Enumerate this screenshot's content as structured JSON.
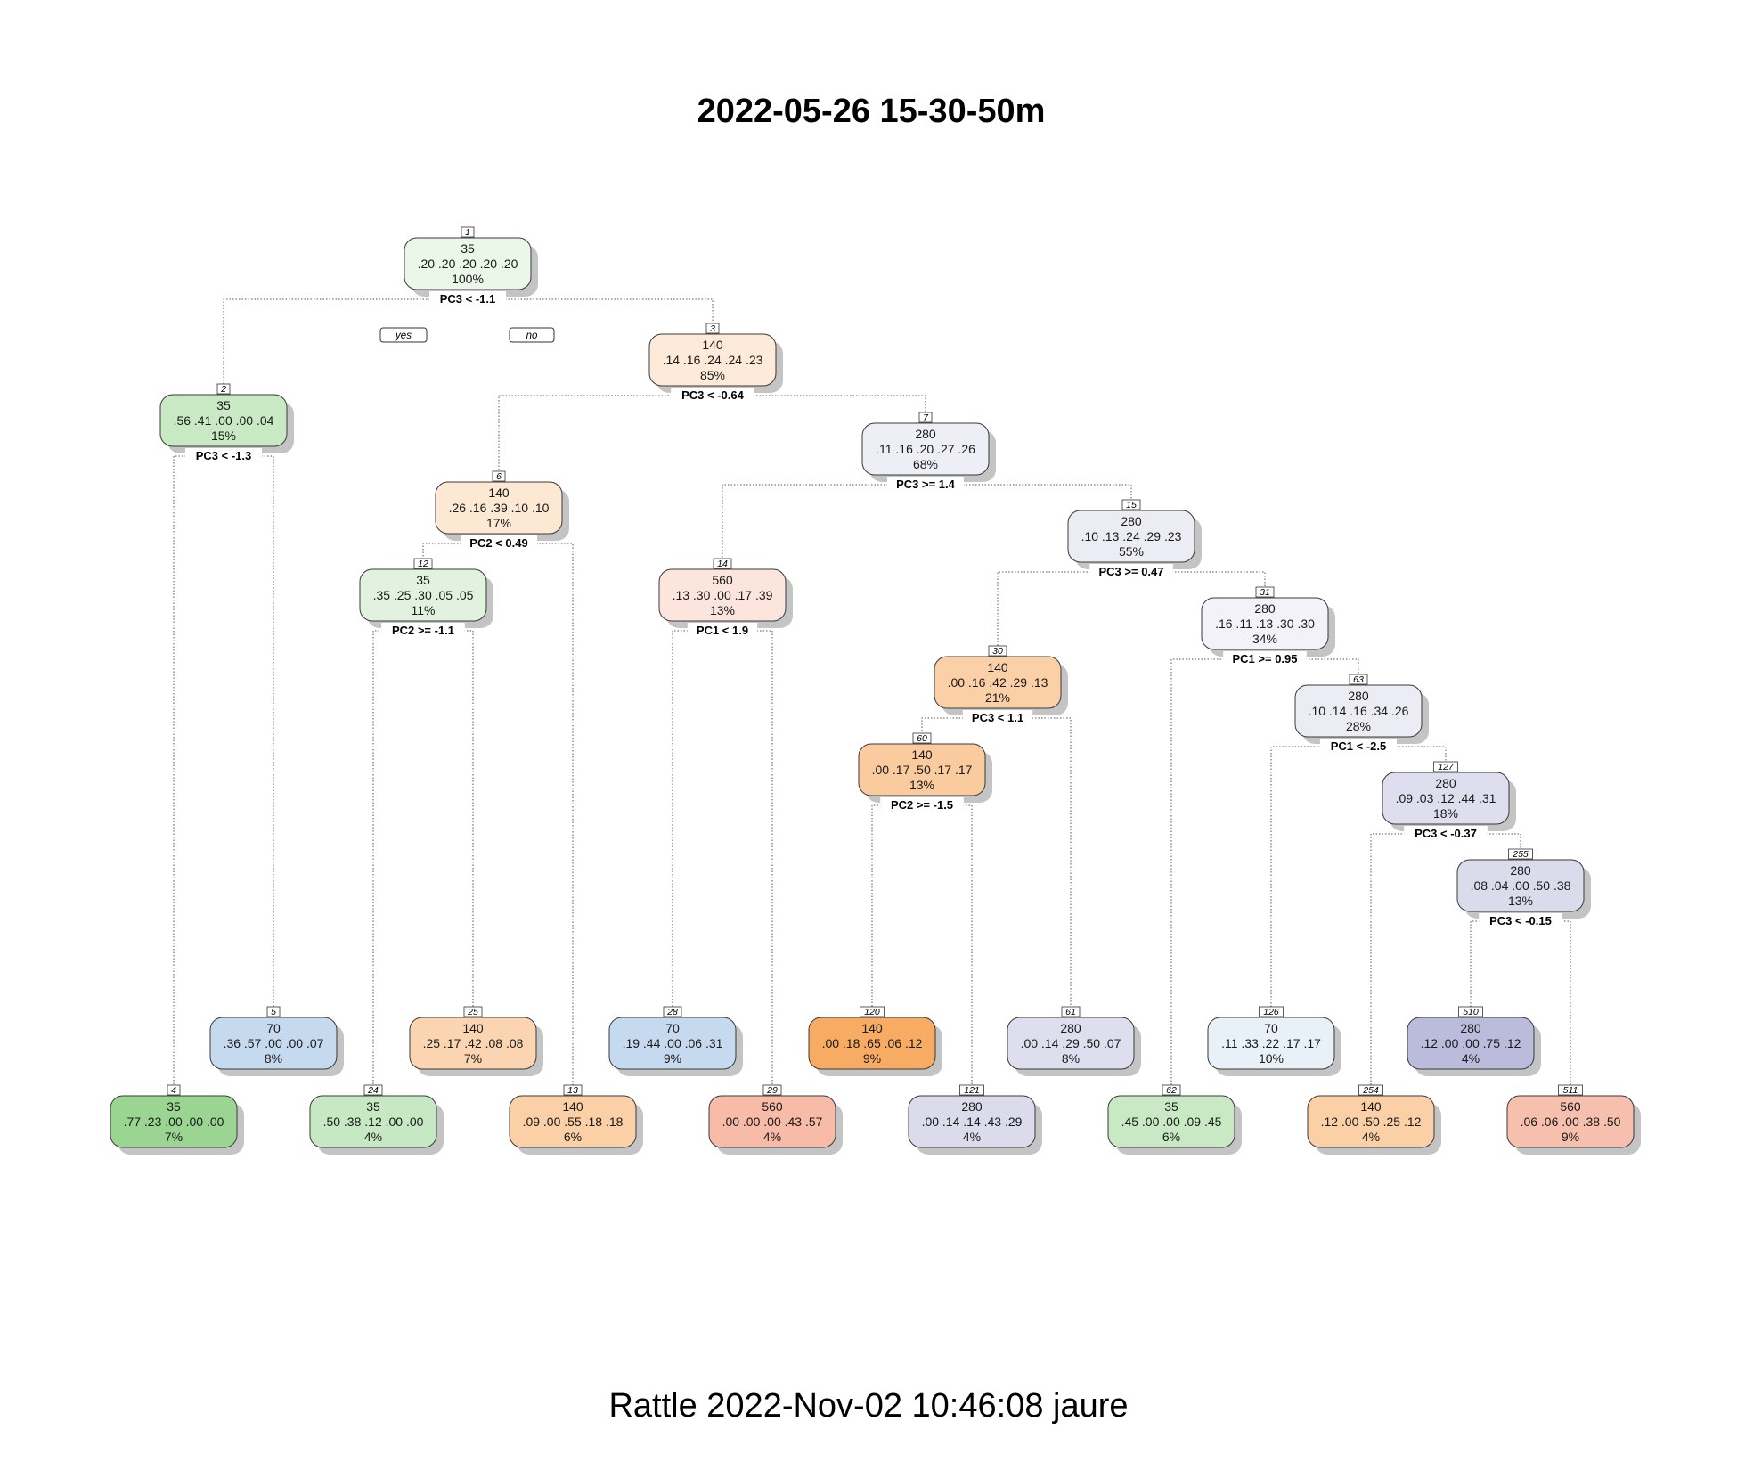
{
  "title": "2022-05-26 15-30-50m",
  "footer": "Rattle 2022-Nov-02 10:46:08 jaure",
  "branch_labels": {
    "yes": "yes",
    "no": "no"
  },
  "colors": {
    "green": [
      [
        255,
        255,
        255
      ],
      [
        120,
        200,
        110
      ]
    ],
    "blue": [
      [
        255,
        255,
        255
      ],
      [
        150,
        185,
        225
      ]
    ],
    "orange": [
      [
        255,
        255,
        255
      ],
      [
        245,
        150,
        60
      ]
    ],
    "salmon": [
      [
        255,
        255,
        255
      ],
      [
        242,
        150,
        120
      ]
    ],
    "purple": [
      [
        255,
        255,
        255
      ],
      [
        160,
        160,
        205
      ]
    ]
  },
  "nodes": [
    {
      "id": "1",
      "pred": "35",
      "probs": ".20 .20 .20 .20 .20",
      "pct": "100%",
      "split": "PC3 < -1.1",
      "palette": "green",
      "shade": 0.15
    },
    {
      "id": "2",
      "pred": "35",
      "probs": ".56 .41 .00 .00 .04",
      "pct": "15%",
      "split": "PC3 < -1.3",
      "palette": "green",
      "shade": 0.4
    },
    {
      "id": "3",
      "pred": "140",
      "probs": ".14 .16 .24 .24 .23",
      "pct": "85%",
      "split": "PC3 < -0.64",
      "palette": "orange",
      "shade": 0.2
    },
    {
      "id": "4",
      "pred": "35",
      "probs": ".77 .23 .00 .00 .00",
      "pct": "7%",
      "palette": "green",
      "shade": 0.75
    },
    {
      "id": "5",
      "pred": "70",
      "probs": ".36 .57 .00 .00 .07",
      "pct": "8%",
      "palette": "blue",
      "shade": 0.55
    },
    {
      "id": "6",
      "pred": "140",
      "probs": ".26 .16 .39 .10 .10",
      "pct": "17%",
      "split": "PC2 < 0.49",
      "palette": "orange",
      "shade": 0.22
    },
    {
      "id": "7",
      "pred": "280",
      "probs": ".11 .16 .20 .27 .26",
      "pct": "68%",
      "split": "PC3 >= 1.4",
      "palette": "purple",
      "shade": 0.18
    },
    {
      "id": "12",
      "pred": "35",
      "probs": ".35 .25 .30 .05 .05",
      "pct": "11%",
      "split": "PC2 >= -1.1",
      "palette": "green",
      "shade": 0.22
    },
    {
      "id": "13",
      "pred": "140",
      "probs": ".09 .00 .55 .18 .18",
      "pct": "6%",
      "palette": "orange",
      "shade": 0.45
    },
    {
      "id": "14",
      "pred": "560",
      "probs": ".13 .30 .00 .17 .39",
      "pct": "13%",
      "split": "PC1 < 1.9",
      "palette": "salmon",
      "shade": 0.25
    },
    {
      "id": "15",
      "pred": "280",
      "probs": ".10 .13 .24 .29 .23",
      "pct": "55%",
      "split": "PC3 >= 0.47",
      "palette": "purple",
      "shade": 0.2
    },
    {
      "id": "24",
      "pred": "35",
      "probs": ".50 .38 .12 .00 .00",
      "pct": "4%",
      "palette": "green",
      "shade": 0.42
    },
    {
      "id": "25",
      "pred": "140",
      "probs": ".25 .17 .42 .08 .08",
      "pct": "7%",
      "palette": "orange",
      "shade": 0.4
    },
    {
      "id": "28",
      "pred": "70",
      "probs": ".19 .44 .00 .06 .31",
      "pct": "9%",
      "palette": "blue",
      "shade": 0.55
    },
    {
      "id": "29",
      "pred": "560",
      "probs": ".00 .00 .00 .43 .57",
      "pct": "4%",
      "palette": "salmon",
      "shade": 0.65
    },
    {
      "id": "30",
      "pred": "140",
      "probs": ".00 .16 .42 .29 .13",
      "pct": "21%",
      "split": "PC3 < 1.1",
      "palette": "orange",
      "shade": 0.45
    },
    {
      "id": "31",
      "pred": "280",
      "probs": ".16 .11 .13 .30 .30",
      "pct": "34%",
      "split": "PC1 >= 0.95",
      "palette": "purple",
      "shade": 0.14
    },
    {
      "id": "60",
      "pred": "140",
      "probs": ".00 .17 .50 .17 .17",
      "pct": "13%",
      "split": "PC2 >= -1.5",
      "palette": "orange",
      "shade": 0.5
    },
    {
      "id": "61",
      "pred": "280",
      "probs": ".00 .14 .29 .50 .07",
      "pct": "8%",
      "palette": "purple",
      "shade": 0.35
    },
    {
      "id": "62",
      "pred": "35",
      "probs": ".45 .00 .00 .09 .45",
      "pct": "6%",
      "palette": "green",
      "shade": 0.4
    },
    {
      "id": "63",
      "pred": "280",
      "probs": ".10 .14 .16 .34 .26",
      "pct": "28%",
      "split": "PC1 < -2.5",
      "palette": "purple",
      "shade": 0.2
    },
    {
      "id": "120",
      "pred": "140",
      "probs": ".00 .18 .65 .06 .12",
      "pct": "9%",
      "palette": "orange",
      "shade": 0.8
    },
    {
      "id": "121",
      "pred": "280",
      "probs": ".00 .14 .14 .43 .29",
      "pct": "4%",
      "palette": "purple",
      "shade": 0.38
    },
    {
      "id": "126",
      "pred": "70",
      "probs": ".11 .33 .22 .17 .17",
      "pct": "10%",
      "palette": "blue",
      "shade": 0.22
    },
    {
      "id": "127",
      "pred": "280",
      "probs": ".09 .03 .12 .44 .31",
      "pct": "18%",
      "split": "PC3 < -0.37",
      "palette": "purple",
      "shade": 0.35
    },
    {
      "id": "254",
      "pred": "140",
      "probs": ".12 .00 .50 .25 .12",
      "pct": "4%",
      "palette": "orange",
      "shade": 0.45
    },
    {
      "id": "255",
      "pred": "280",
      "probs": ".08 .04 .00 .50 .38",
      "pct": "13%",
      "split": "PC3 < -0.15",
      "palette": "purple",
      "shade": 0.38
    },
    {
      "id": "510",
      "pred": "280",
      "probs": ".12 .00 .00 .75 .12",
      "pct": "4%",
      "palette": "purple",
      "shade": 0.72
    },
    {
      "id": "511",
      "pred": "560",
      "probs": ".06 .06 .00 .38 .50",
      "pct": "9%",
      "palette": "salmon",
      "shade": 0.6
    }
  ],
  "edges": [
    [
      "1",
      "2"
    ],
    [
      "1",
      "3"
    ],
    [
      "2",
      "4"
    ],
    [
      "2",
      "5"
    ],
    [
      "3",
      "6"
    ],
    [
      "3",
      "7"
    ],
    [
      "6",
      "12"
    ],
    [
      "6",
      "13"
    ],
    [
      "12",
      "24"
    ],
    [
      "12",
      "25"
    ],
    [
      "7",
      "14"
    ],
    [
      "7",
      "15"
    ],
    [
      "14",
      "28"
    ],
    [
      "14",
      "29"
    ],
    [
      "15",
      "30"
    ],
    [
      "15",
      "31"
    ],
    [
      "30",
      "60"
    ],
    [
      "30",
      "61"
    ],
    [
      "60",
      "120"
    ],
    [
      "60",
      "121"
    ],
    [
      "31",
      "62"
    ],
    [
      "31",
      "63"
    ],
    [
      "63",
      "126"
    ],
    [
      "63",
      "127"
    ],
    [
      "127",
      "254"
    ],
    [
      "127",
      "255"
    ],
    [
      "255",
      "510"
    ],
    [
      "255",
      "511"
    ]
  ]
}
